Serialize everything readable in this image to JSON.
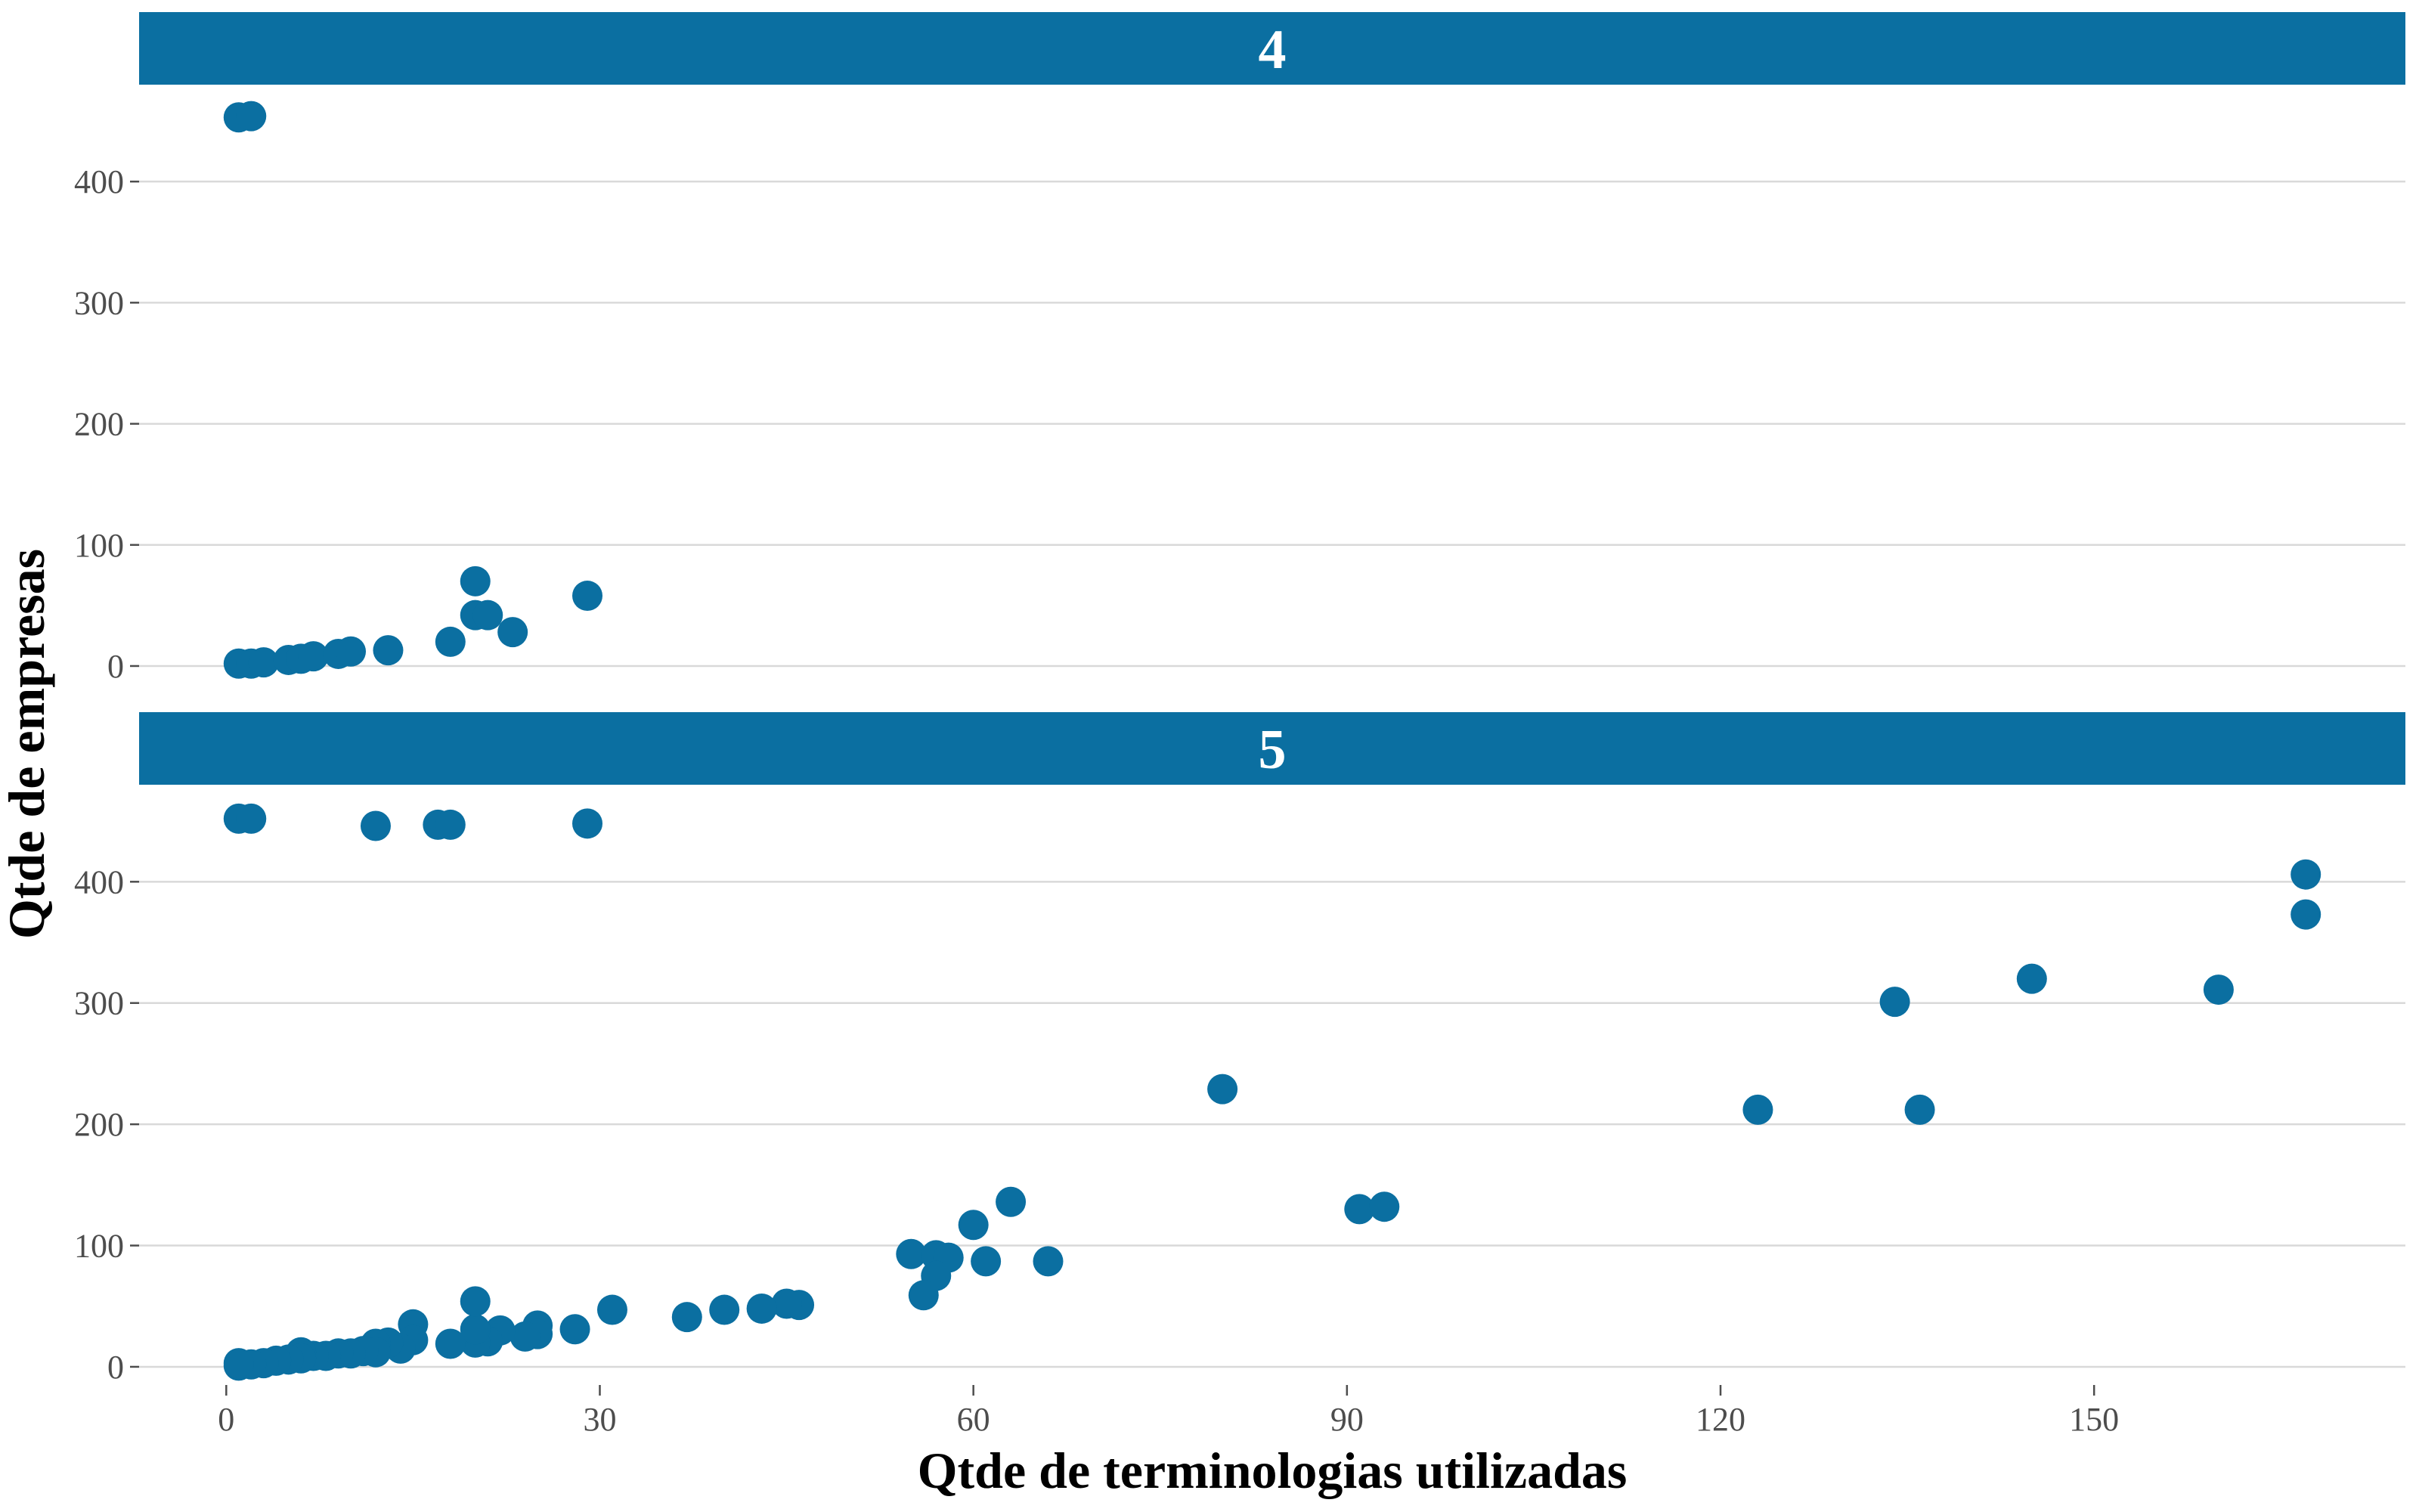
{
  "chart_data": {
    "type": "scatter",
    "xlabel": "Qtde de terminologias utilizadas",
    "ylabel": "Qtde de empresas",
    "xlim": [
      -7,
      175
    ],
    "ylim": [
      -15,
      480
    ],
    "x_ticks": [
      0,
      30,
      60,
      90,
      120,
      150
    ],
    "y_ticks": [
      0,
      100,
      200,
      300,
      400
    ],
    "grid": "horizontal major lines only",
    "point_color": "#0b6fa1",
    "strip_color": "#0b6fa1",
    "facets": [
      {
        "label": "4",
        "points": [
          [
            1,
            453
          ],
          [
            2,
            454
          ],
          [
            1,
            2
          ],
          [
            2,
            2
          ],
          [
            3,
            3
          ],
          [
            5,
            5
          ],
          [
            6,
            6
          ],
          [
            7,
            8
          ],
          [
            9,
            10
          ],
          [
            10,
            12
          ],
          [
            13,
            13
          ],
          [
            18,
            20
          ],
          [
            20,
            42
          ],
          [
            21,
            42
          ],
          [
            20,
            70
          ],
          [
            23,
            28
          ],
          [
            29,
            58
          ]
        ]
      },
      {
        "label": "5",
        "points": [
          [
            1,
            452
          ],
          [
            2,
            452
          ],
          [
            12,
            446
          ],
          [
            17,
            447
          ],
          [
            18,
            447
          ],
          [
            29,
            448
          ],
          [
            167,
            406
          ],
          [
            167,
            373
          ],
          [
            160,
            311
          ],
          [
            145,
            320
          ],
          [
            134,
            301
          ],
          [
            136,
            212
          ],
          [
            123,
            212
          ],
          [
            80,
            229
          ],
          [
            91,
            130
          ],
          [
            93,
            132
          ],
          [
            63,
            136
          ],
          [
            60,
            117
          ],
          [
            61,
            87
          ],
          [
            66,
            87
          ],
          [
            55,
            93
          ],
          [
            57,
            92
          ],
          [
            58,
            90
          ],
          [
            57,
            75
          ],
          [
            56,
            59
          ],
          [
            46,
            51
          ],
          [
            45,
            52
          ],
          [
            43,
            48
          ],
          [
            40,
            47
          ],
          [
            37,
            41
          ],
          [
            31,
            47
          ],
          [
            28,
            31
          ],
          [
            25,
            34
          ],
          [
            25,
            27
          ],
          [
            24,
            25
          ],
          [
            22,
            30
          ],
          [
            21,
            21
          ],
          [
            20,
            20
          ],
          [
            20,
            31
          ],
          [
            20,
            54
          ],
          [
            18,
            19
          ],
          [
            15,
            35
          ],
          [
            15,
            22
          ],
          [
            14,
            15
          ],
          [
            13,
            20
          ],
          [
            12,
            19
          ],
          [
            12,
            12
          ],
          [
            11,
            13
          ],
          [
            10,
            11
          ],
          [
            9,
            11
          ],
          [
            8,
            9
          ],
          [
            7,
            9
          ],
          [
            6,
            12
          ],
          [
            6,
            7
          ],
          [
            5,
            6
          ],
          [
            4,
            5
          ],
          [
            3,
            3
          ],
          [
            2,
            2
          ],
          [
            1,
            1
          ],
          [
            1,
            3
          ]
        ]
      }
    ]
  }
}
